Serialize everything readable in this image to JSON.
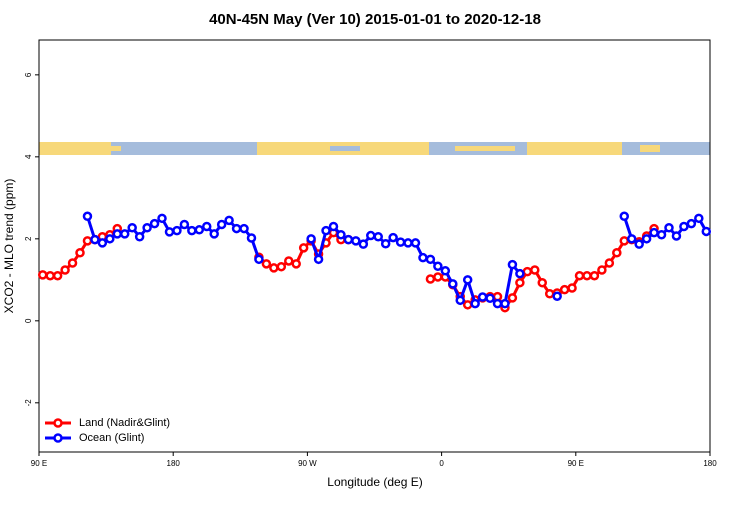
{
  "chart_data": {
    "type": "line",
    "title": "40N-45N May (Ver 10)   2015-01-01 to 2020-12-18",
    "x_label": "Longitude (deg E)",
    "y_label": "XCO2 - MLO trend (ppm)",
    "xlim": [
      90,
      540
    ],
    "xticks": [
      {
        "value": 90,
        "label": "90 E"
      },
      180,
      {
        "value": 270,
        "label": "90 W"
      },
      {
        "value": 360,
        "label": "0"
      },
      {
        "value": 450,
        "label": "90 E"
      },
      {
        "value": 540,
        "label": "180"
      }
    ],
    "ylim": [
      -3.2,
      6.85
    ],
    "yticks": [
      -2,
      0,
      2,
      4,
      6
    ],
    "legend": "bottomleft",
    "x": [
      92.5,
      97.5,
      102.5,
      107.5,
      112.5,
      117.5,
      122.5,
      127.5,
      132.5,
      137.5,
      142.5,
      147.5,
      152.5,
      157.5,
      162.5,
      167.5,
      172.5,
      177.5,
      182.5,
      187.5,
      192.5,
      197.5,
      202.5,
      207.5,
      212.5,
      217.5,
      222.5,
      227.5,
      232.5,
      237.5,
      242.5,
      247.5,
      252.5,
      257.5,
      262.5,
      267.5,
      272.5,
      277.5,
      282.5,
      287.5,
      292.5,
      297.5,
      302.5,
      307.5,
      312.5,
      317.5,
      322.5,
      327.5,
      332.5,
      337.5,
      342.5,
      347.5,
      352.5,
      357.5,
      362.5,
      367.5,
      372.5,
      377.5,
      382.5,
      387.5,
      392.5,
      397.5,
      402.5,
      407.5,
      412.5,
      417.5,
      422.5,
      427.5,
      432.5,
      437.5,
      442.5,
      447.5,
      452.5,
      457.5,
      462.5,
      467.5,
      472.5,
      477.5,
      482.5,
      487.5,
      492.5,
      497.5,
      502.5,
      507.5,
      512.5,
      517.5,
      522.5,
      527.5,
      532.5,
      537.5
    ],
    "series": [
      {
        "name": "Land (Nadir&Glint)",
        "color": "#ff0000",
        "values": [
          1.12,
          1.1,
          1.1,
          1.24,
          1.41,
          1.66,
          1.95,
          1.98,
          2.05,
          2.1,
          2.25,
          null,
          null,
          null,
          null,
          null,
          null,
          null,
          null,
          null,
          null,
          null,
          null,
          null,
          null,
          null,
          null,
          null,
          null,
          1.55,
          1.39,
          1.29,
          1.32,
          1.46,
          1.39,
          1.78,
          1.95,
          1.63,
          1.9,
          2.15,
          1.98,
          1.98,
          null,
          null,
          null,
          null,
          null,
          null,
          null,
          null,
          null,
          null,
          1.02,
          1.07,
          1.07,
          0.88,
          0.59,
          0.39,
          0.51,
          0.56,
          0.59,
          0.59,
          0.32,
          0.56,
          0.93,
          1.2,
          1.24,
          0.93,
          0.66,
          0.68,
          0.76,
          0.8,
          1.1,
          1.1,
          1.1,
          1.24,
          1.41,
          1.66,
          1.95,
          1.98,
          1.93,
          2.07,
          2.25,
          null,
          null,
          null,
          null,
          null,
          null,
          null
        ]
      },
      {
        "name": "Ocean (Glint)",
        "color": "#0000ff",
        "values": [
          null,
          null,
          null,
          null,
          null,
          null,
          2.55,
          1.98,
          1.9,
          2.0,
          2.12,
          2.12,
          2.27,
          2.05,
          2.27,
          2.37,
          2.5,
          2.17,
          2.2,
          2.35,
          2.2,
          2.22,
          2.3,
          2.12,
          2.35,
          2.45,
          2.25,
          2.25,
          2.02,
          1.5,
          null,
          null,
          null,
          null,
          null,
          null,
          2.0,
          1.5,
          2.2,
          2.3,
          2.1,
          1.98,
          1.95,
          1.87,
          2.08,
          2.05,
          1.88,
          2.03,
          1.92,
          1.9,
          1.9,
          1.54,
          1.5,
          1.33,
          1.22,
          0.9,
          0.5,
          1.0,
          0.42,
          0.58,
          0.55,
          0.42,
          0.42,
          1.37,
          1.15,
          null,
          null,
          null,
          null,
          0.6,
          null,
          null,
          null,
          null,
          null,
          null,
          null,
          null,
          2.55,
          2.0,
          1.87,
          2.0,
          2.15,
          2.1,
          2.27,
          2.07,
          2.3,
          2.37,
          2.5,
          2.18
        ]
      }
    ]
  }
}
